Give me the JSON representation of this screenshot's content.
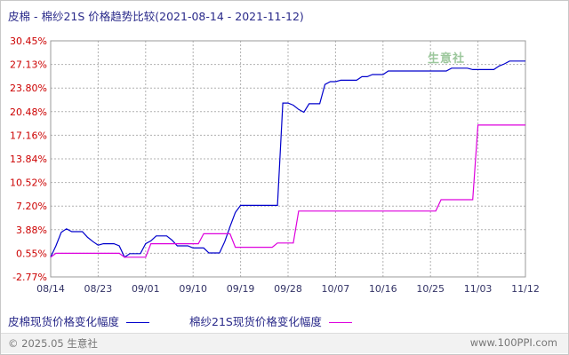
{
  "title": "皮棉 - 棉纱21S 价格趋势比较(2021-08-14 - 2021-11-12)",
  "watermark": "生意社",
  "legend": [
    {
      "label": "皮棉现货价格变化幅度",
      "color": "#0000cc"
    },
    {
      "label": "棉纱21S现货价格变化幅度",
      "color": "#dd00dd"
    }
  ],
  "footer": {
    "copyright": "© 2025.05 生意社",
    "site": "www.100PPI.com"
  },
  "colors": {
    "axis_label": "#cc0000",
    "grid": "#b0b0b0",
    "tick_text": "#333366"
  },
  "chart_data": {
    "type": "line",
    "title": "",
    "xlabel": "",
    "ylabel": "",
    "x_ticks": [
      "08/14",
      "08/23",
      "09/01",
      "09/10",
      "09/19",
      "09/28",
      "10/07",
      "10/16",
      "10/25",
      "11/03",
      "11/12"
    ],
    "y_ticks": [
      "30.45%",
      "27.13%",
      "23.80%",
      "20.48%",
      "17.16%",
      "13.84%",
      "10.52%",
      "7.20%",
      "3.88%",
      "0.55%",
      "-2.77%"
    ],
    "ylim": [
      -2.77,
      30.45
    ],
    "x_range_days": [
      0,
      90
    ],
    "grid": true,
    "series": [
      {
        "name": "皮棉现货价格变化幅度",
        "color": "#0000cc",
        "x": [
          0,
          1,
          2,
          3,
          4,
          5,
          6,
          7,
          8,
          9,
          10,
          11,
          12,
          13,
          14,
          15,
          16,
          17,
          18,
          19,
          20,
          21,
          22,
          23,
          24,
          25,
          26,
          27,
          28,
          29,
          30,
          31,
          32,
          33,
          34,
          35,
          36,
          37,
          38,
          39,
          40,
          41,
          42,
          43,
          44,
          45,
          46,
          47,
          48,
          49,
          50,
          51,
          52,
          53,
          54,
          55,
          56,
          57,
          58,
          59,
          60,
          61,
          62,
          63,
          64,
          65,
          66,
          67,
          68,
          69,
          70,
          71,
          72,
          73,
          74,
          75,
          76,
          77,
          78,
          79,
          80,
          81,
          82,
          83,
          84,
          85,
          86,
          87,
          88,
          89,
          90
        ],
        "values": [
          0.0,
          1.6,
          3.5,
          4.0,
          3.6,
          3.6,
          3.6,
          2.8,
          2.2,
          1.7,
          1.9,
          1.9,
          1.9,
          1.6,
          0.0,
          0.5,
          0.5,
          0.5,
          1.9,
          2.3,
          3.0,
          3.0,
          3.0,
          2.4,
          1.6,
          1.6,
          1.6,
          1.3,
          1.3,
          1.3,
          0.6,
          0.6,
          0.6,
          2.2,
          4.3,
          6.3,
          7.3,
          7.3,
          7.3,
          7.3,
          7.3,
          7.3,
          7.3,
          7.3,
          21.7,
          21.7,
          21.4,
          20.8,
          20.4,
          21.6,
          21.6,
          21.6,
          24.3,
          24.7,
          24.7,
          24.9,
          24.9,
          24.9,
          24.9,
          25.4,
          25.4,
          25.7,
          25.7,
          25.7,
          26.2,
          26.2,
          26.2,
          26.2,
          26.2,
          26.2,
          26.2,
          26.2,
          26.2,
          26.2,
          26.2,
          26.2,
          26.6,
          26.6,
          26.6,
          26.6,
          26.4,
          26.4,
          26.4,
          26.4,
          26.4,
          26.9,
          27.2,
          27.6,
          27.6,
          27.6,
          27.6
        ]
      },
      {
        "name": "棉纱21S现货价格变化幅度",
        "color": "#dd00dd",
        "x": [
          0,
          1,
          13,
          14,
          18,
          19,
          28,
          29,
          34,
          35,
          42,
          43,
          46,
          47,
          73,
          74,
          80,
          81,
          89,
          90
        ],
        "values": [
          0.0,
          0.55,
          0.55,
          0.0,
          0.0,
          1.9,
          1.9,
          3.3,
          3.3,
          1.4,
          1.4,
          2.0,
          2.0,
          6.5,
          6.5,
          8.1,
          8.1,
          18.6,
          18.6,
          18.6
        ]
      }
    ]
  }
}
